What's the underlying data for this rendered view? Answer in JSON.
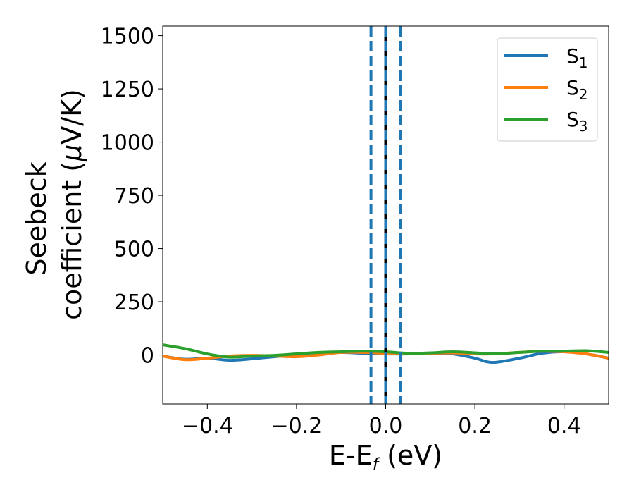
{
  "chart_data": {
    "type": "line",
    "xlabel": "E-E",
    "xlabel_sub": "f",
    "xlabel_suffix": " (eV)",
    "ylabel_line1": "Seebeck",
    "ylabel_line2": "coefficient  (",
    "ylabel_mu": "μ",
    "ylabel_line2_suffix": "V/K)",
    "xlim": [
      -0.5,
      0.5
    ],
    "ylim": [
      -230,
      1545
    ],
    "xticks": [
      -0.4,
      -0.2,
      0.0,
      0.2,
      0.4
    ],
    "xtick_labels": [
      "−0.4",
      "−0.2",
      "0.0",
      "0.2",
      "0.4"
    ],
    "yticks": [
      0,
      250,
      500,
      750,
      1000,
      1250,
      1500
    ],
    "ytick_labels": [
      "0",
      "250",
      "500",
      "750",
      "1000",
      "1250",
      "1500"
    ],
    "grid": false,
    "legend_position": "top-right",
    "vlines": [
      {
        "x": -0.033,
        "color": "#1f77b4",
        "style": "dashed"
      },
      {
        "x": 0.0,
        "color": "#000000",
        "style": "solid"
      },
      {
        "x": 0.0,
        "color": "#1f77b4",
        "style": "dashed"
      },
      {
        "x": 0.033,
        "color": "#1f77b4",
        "style": "dashed"
      }
    ],
    "series": [
      {
        "name": "S",
        "name_sub": "1",
        "color": "#1f77b4",
        "x": [
          -0.5,
          -0.45,
          -0.4,
          -0.35,
          -0.3,
          -0.25,
          -0.2,
          -0.15,
          -0.1,
          -0.05,
          0.0,
          0.05,
          0.1,
          0.15,
          0.2,
          0.24,
          0.3,
          0.35,
          0.4,
          0.45,
          0.5
        ],
        "y": [
          -5,
          -20,
          -15,
          -25,
          -18,
          -8,
          0,
          10,
          12,
          8,
          5,
          5,
          8,
          5,
          -15,
          -35,
          -15,
          8,
          15,
          5,
          -15
        ]
      },
      {
        "name": "S",
        "name_sub": "2",
        "color": "#ff7f0e",
        "x": [
          -0.5,
          -0.45,
          -0.4,
          -0.35,
          -0.3,
          -0.25,
          -0.2,
          -0.15,
          -0.1,
          -0.05,
          0.0,
          0.05,
          0.1,
          0.15,
          0.2,
          0.24,
          0.3,
          0.35,
          0.4,
          0.45,
          0.5
        ],
        "y": [
          -5,
          -22,
          -15,
          -5,
          -2,
          -5,
          -8,
          0,
          12,
          12,
          8,
          5,
          8,
          10,
          5,
          5,
          12,
          18,
          15,
          5,
          -15
        ]
      },
      {
        "name": "S",
        "name_sub": "3",
        "color": "#2ca02c",
        "x": [
          -0.5,
          -0.45,
          -0.4,
          -0.35,
          -0.3,
          -0.25,
          -0.2,
          -0.15,
          -0.1,
          -0.05,
          0.0,
          0.05,
          0.1,
          0.15,
          0.2,
          0.24,
          0.3,
          0.35,
          0.4,
          0.45,
          0.5
        ],
        "y": [
          48,
          30,
          5,
          -10,
          -5,
          -2,
          5,
          12,
          15,
          18,
          15,
          8,
          10,
          15,
          10,
          5,
          12,
          18,
          18,
          20,
          12
        ]
      }
    ]
  }
}
